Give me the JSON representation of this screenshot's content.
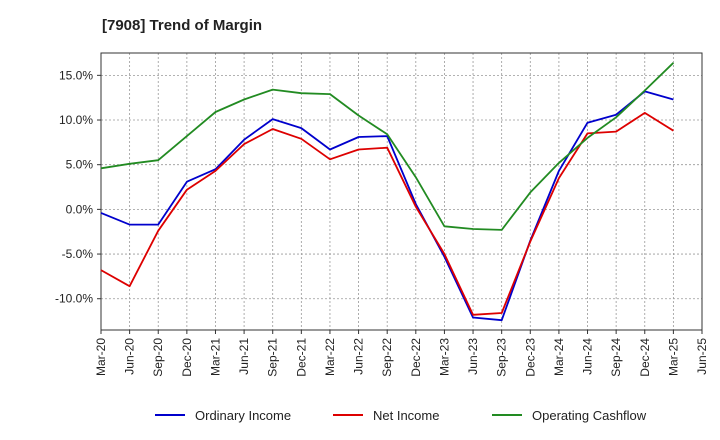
{
  "chart_data": {
    "type": "line",
    "title": "[7908]  Trend of Margin",
    "xlabel": "",
    "ylabel": "",
    "categories": [
      "Mar-20",
      "Jun-20",
      "Sep-20",
      "Dec-20",
      "Mar-21",
      "Jun-21",
      "Sep-21",
      "Dec-21",
      "Mar-22",
      "Jun-22",
      "Sep-22",
      "Dec-22",
      "Mar-23",
      "Jun-23",
      "Sep-23",
      "Dec-23",
      "Mar-24",
      "Jun-24",
      "Sep-24",
      "Dec-24",
      "Mar-25",
      "Jun-25"
    ],
    "ylim": [
      -13.5,
      17.5
    ],
    "yticks": [
      15,
      10,
      5,
      0,
      -5,
      -10
    ],
    "ytick_labels": [
      "15.0%",
      "10.0%",
      "5.0%",
      "0.0%",
      "-5.0%",
      "-10.0%"
    ],
    "grid": true,
    "legend_position": "bottom",
    "series": [
      {
        "name": "Ordinary Income",
        "color": "#0000cc",
        "values": [
          -0.4,
          -1.7,
          -1.7,
          3.1,
          4.5,
          7.8,
          10.1,
          9.1,
          6.7,
          8.1,
          8.2,
          0.6,
          -5.3,
          -12.1,
          -12.4,
          -3.5,
          4.3,
          9.7,
          10.6,
          13.2,
          12.3,
          null
        ]
      },
      {
        "name": "Net Income",
        "color": "#dd0000",
        "values": [
          -6.8,
          -8.6,
          -2.4,
          2.2,
          4.3,
          7.3,
          9.0,
          7.9,
          5.6,
          6.7,
          6.9,
          0.3,
          -5.0,
          -11.8,
          -11.6,
          -3.6,
          3.5,
          8.5,
          8.7,
          10.8,
          8.8,
          null
        ]
      },
      {
        "name": "Operating Cashflow",
        "color": "#228b22",
        "values": [
          4.6,
          5.1,
          5.5,
          8.2,
          10.9,
          12.3,
          13.4,
          13.0,
          12.9,
          10.5,
          8.4,
          3.6,
          -1.9,
          -2.2,
          -2.3,
          1.9,
          5.2,
          8.0,
          10.3,
          13.3,
          16.4,
          null
        ]
      }
    ]
  }
}
